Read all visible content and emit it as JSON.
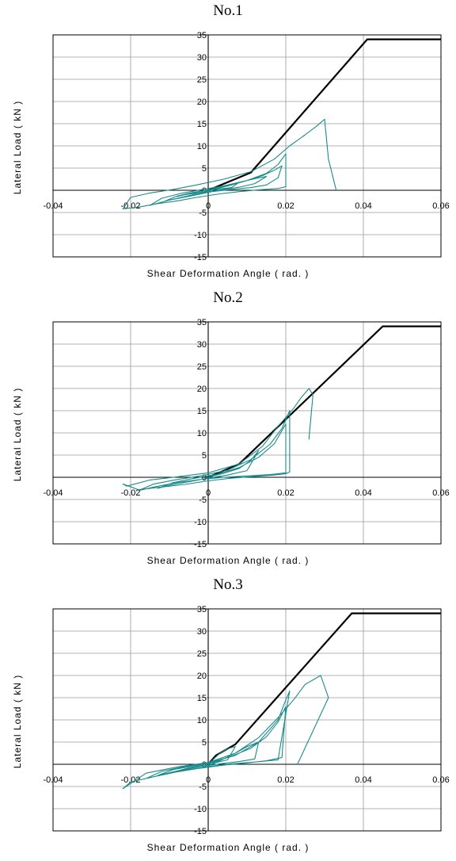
{
  "chart_data": [
    {
      "type": "line",
      "title": "No.1",
      "xlabel": "Shear Deformation Angle ( rad. )",
      "ylabel": "Lateral Load ( kN )",
      "xlim": [
        -0.04,
        0.06
      ],
      "ylim": [
        -15,
        35
      ],
      "xticks": [
        "-0.04",
        "-0.02",
        "0",
        "0.02",
        "0.04",
        "0.06"
      ],
      "yticks": [
        "35",
        "30",
        "25",
        "20",
        "15",
        "10",
        "5",
        "0",
        "-5",
        "-10",
        "-15"
      ],
      "grid": true,
      "colors": {
        "model": "#000000",
        "test": "#1a8a8a"
      },
      "series": [
        {
          "role": "model",
          "x": [
            0,
            0.011,
            0.041,
            0.06
          ],
          "y": [
            0,
            4,
            34,
            34
          ]
        },
        {
          "role": "test",
          "x": [
            0,
            0.003,
            0.006,
            0.008,
            0.006,
            0.002,
            0,
            -0.003,
            -0.006,
            -0.008,
            -0.005,
            -0.001,
            0.002,
            0.006,
            0.01,
            0.013,
            0.015,
            0.012,
            0.008,
            0.004,
            0,
            -0.004,
            -0.008,
            -0.011,
            -0.008,
            -0.004,
            0,
            0.005,
            0.01,
            0.014,
            0.017,
            0.019,
            0.018,
            0.015,
            0.011,
            0.006,
            0.001,
            -0.004,
            -0.01,
            -0.015,
            -0.012,
            -0.007,
            -0.002,
            0.004,
            0.01,
            0.015,
            0.018,
            0.02,
            0.02,
            0.02,
            0.018,
            0.013,
            0.008,
            0.003,
            -0.003,
            -0.008,
            -0.013,
            -0.018,
            -0.022,
            -0.02,
            -0.015,
            -0.009,
            -0.003,
            0.004,
            0.011,
            0.017,
            0.021,
            0.025,
            0.028,
            0.03,
            0.031,
            0.033
          ],
          "y": [
            0,
            0.7,
            1.3,
            1.8,
            0.6,
            0.2,
            -0.2,
            -0.6,
            -1.0,
            -1.4,
            -0.8,
            -0.3,
            0.3,
            1.2,
            2.2,
            2.8,
            3.1,
            1.5,
            0.7,
            0.2,
            -0.4,
            -1.0,
            -1.8,
            -2.4,
            -1.3,
            -0.5,
            0.1,
            1.0,
            2.2,
            3.3,
            4.5,
            5.5,
            2.8,
            1.2,
            0.6,
            0.2,
            -0.3,
            -1.2,
            -2.2,
            -3.4,
            -1.8,
            -0.7,
            0.1,
            1.0,
            2.2,
            3.8,
            5.8,
            8.2,
            1.5,
            0.8,
            0.4,
            0.1,
            -0.3,
            -0.8,
            -1.6,
            -2.4,
            -3.0,
            -3.8,
            -4.2,
            -1.6,
            -0.6,
            0.2,
            1.2,
            2.5,
            4.2,
            7.0,
            10.0,
            12.5,
            14.5,
            16.0,
            7.0,
            0
          ]
        }
      ]
    },
    {
      "type": "line",
      "title": "No.2",
      "xlabel": "Shear Deformation Angle ( rad. )",
      "ylabel": "Lateral Load ( kN )",
      "xlim": [
        -0.04,
        0.06
      ],
      "ylim": [
        -15,
        35
      ],
      "xticks": [
        "-0.04",
        "-0.02",
        "0",
        "0.02",
        "0.04",
        "0.06"
      ],
      "yticks": [
        "35",
        "30",
        "25",
        "20",
        "15",
        "10",
        "5",
        "0",
        "-5",
        "-10",
        "-15"
      ],
      "grid": true,
      "colors": {
        "model": "#000000",
        "test": "#1a8a8a"
      },
      "series": [
        {
          "role": "model",
          "x": [
            0,
            0.008,
            0.045,
            0.06
          ],
          "y": [
            0,
            3,
            34,
            34
          ]
        },
        {
          "role": "test",
          "x": [
            0,
            0.004,
            0.008,
            0.011,
            0.013,
            0.01,
            0.005,
            0,
            -0.005,
            -0.01,
            -0.013,
            -0.009,
            -0.004,
            0.002,
            0.008,
            0.013,
            0.017,
            0.02,
            0.02,
            0.016,
            0.01,
            0.004,
            -0.002,
            -0.008,
            -0.014,
            -0.018,
            -0.014,
            -0.008,
            -0.002,
            0.005,
            0.011,
            0.016,
            0.019,
            0.021,
            0.021,
            0.02,
            0.017,
            0.012,
            0.006,
            0,
            -0.006,
            -0.012,
            -0.018,
            -0.022,
            -0.021,
            -0.015,
            -0.008,
            0,
            0.008,
            0.014,
            0.018,
            0.022,
            0.024,
            0.026,
            0.027,
            0.026,
            0.026
          ],
          "y": [
            0,
            0.9,
            2.0,
            3.8,
            6.0,
            1.5,
            0.5,
            -0.2,
            -1.0,
            -1.8,
            -2.5,
            -1.2,
            -0.3,
            0.6,
            2.2,
            4.5,
            7.5,
            12.0,
            1.0,
            0.6,
            0.3,
            0.0,
            -0.5,
            -1.2,
            -2.2,
            -3.0,
            -1.5,
            -0.5,
            0.3,
            1.6,
            4.0,
            7.5,
            11.0,
            15.0,
            1.2,
            0.8,
            0.5,
            0.2,
            -0.2,
            -0.8,
            -1.6,
            -2.2,
            -2.8,
            -1.5,
            -2.0,
            -0.6,
            0.1,
            1.0,
            3.0,
            7.0,
            11.5,
            15.5,
            18.0,
            20.0,
            18.5,
            9.0,
            8.5
          ]
        }
      ]
    },
    {
      "type": "line",
      "title": "No.3",
      "xlabel": "Shear Deformation Angle ( rad. )",
      "ylabel": "Lateral Load ( kN )",
      "xlim": [
        -0.04,
        0.06
      ],
      "ylim": [
        -15,
        35
      ],
      "xticks": [
        "-0.04",
        "-0.02",
        "0",
        "0.02",
        "0.04",
        "0.06"
      ],
      "yticks": [
        "35",
        "30",
        "25",
        "20",
        "15",
        "10",
        "5",
        "0",
        "-5",
        "-10",
        "-15"
      ],
      "grid": true,
      "colors": {
        "model": "#000000",
        "test": "#1a8a8a"
      },
      "series": [
        {
          "role": "model",
          "x": [
            0,
            0.002,
            0.007,
            0.037,
            0.06
          ],
          "y": [
            0,
            2,
            4.5,
            34,
            34
          ]
        },
        {
          "role": "test",
          "x": [
            0,
            0.003,
            0.005,
            0.007,
            0.005,
            0.002,
            0,
            -0.004,
            -0.008,
            -0.005,
            -0.001,
            0.003,
            0.007,
            0.01,
            0.013,
            0.012,
            0.008,
            0.003,
            -0.002,
            -0.008,
            -0.013,
            -0.009,
            -0.004,
            0.001,
            0.006,
            0.011,
            0.015,
            0.018,
            0.02,
            0.019,
            0.015,
            0.01,
            0.004,
            -0.003,
            -0.01,
            -0.016,
            -0.012,
            -0.006,
            0,
            0.007,
            0.013,
            0.018,
            0.02,
            0.021,
            0.018,
            0.012,
            0.006,
            0,
            -0.007,
            -0.014,
            -0.02,
            -0.022,
            -0.016,
            -0.008,
            0,
            0.007,
            0.013,
            0.018,
            0.022,
            0.025,
            0.029,
            0.031,
            0.023
          ],
          "y": [
            0,
            2.5,
            3.5,
            4.0,
            1.0,
            0.4,
            -0.2,
            -0.8,
            -1.5,
            -0.8,
            -0.1,
            0.8,
            2.5,
            4.0,
            5.0,
            1.2,
            0.6,
            0.1,
            -0.5,
            -1.5,
            -2.5,
            -1.2,
            -0.4,
            0.4,
            1.8,
            3.6,
            6.2,
            9.5,
            13.0,
            1.5,
            0.8,
            0.3,
            -0.2,
            -1.0,
            -2.0,
            -3.2,
            -1.6,
            -0.5,
            0.3,
            2.0,
            5.0,
            10.0,
            14.5,
            16.5,
            1.0,
            0.5,
            0.1,
            -0.5,
            -1.5,
            -2.8,
            -4.0,
            -5.5,
            -2.0,
            -0.6,
            0.4,
            2.5,
            6.0,
            10.5,
            14.5,
            18.0,
            20.0,
            15.0,
            0
          ]
        }
      ]
    }
  ]
}
